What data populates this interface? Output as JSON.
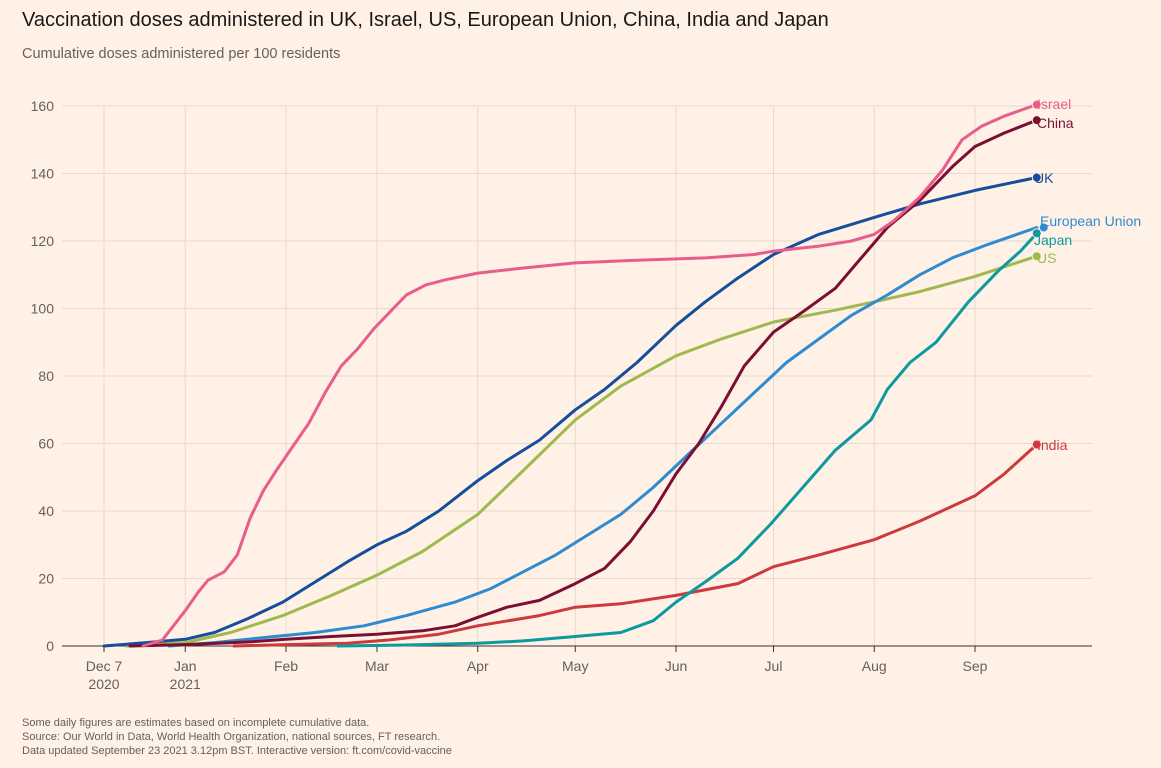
{
  "title": "Vaccination doses administered in UK, Israel, US, European Union, China, India and Japan",
  "subtitle": "Cumulative doses administered per 100 residents",
  "footer": {
    "note": "Some daily figures are estimates based on incomplete cumulative data.",
    "source": "Source: Our World in Data, World Health Organization, national sources, FT research.",
    "updated": "Data updated September 23 2021 3.12pm BST. Interactive version: ft.com/covid-vaccine"
  },
  "colors": {
    "background": "#fff1e5",
    "grid": "#e6d9ce",
    "axis": "#33302e",
    "tick_text": "#66605c"
  },
  "chart_data": {
    "type": "line",
    "xlabel": "",
    "ylabel": "",
    "x_type": "date",
    "xlim": [
      "2020-12-07",
      "2021-10-07"
    ],
    "ylim": [
      0,
      160
    ],
    "yticks": [
      0,
      20,
      40,
      60,
      80,
      100,
      120,
      140,
      160
    ],
    "xticks": [
      {
        "date": "2020-12-07",
        "line1": "Dec 7",
        "line2": "2020"
      },
      {
        "date": "2021-01-01",
        "line1": "Jan",
        "line2": "2021"
      },
      {
        "date": "2021-02-01",
        "line1": "Feb",
        "line2": ""
      },
      {
        "date": "2021-03-01",
        "line1": "Mar",
        "line2": ""
      },
      {
        "date": "2021-04-01",
        "line1": "Apr",
        "line2": ""
      },
      {
        "date": "2021-05-01",
        "line1": "May",
        "line2": ""
      },
      {
        "date": "2021-06-01",
        "line1": "Jun",
        "line2": ""
      },
      {
        "date": "2021-07-01",
        "line1": "Jul",
        "line2": ""
      },
      {
        "date": "2021-08-01",
        "line1": "Aug",
        "line2": ""
      },
      {
        "date": "2021-09-01",
        "line1": "Sep",
        "line2": ""
      }
    ],
    "grid": true,
    "legend": "direct labels at line ends",
    "series": [
      {
        "name": "Israel",
        "color": "#e95d8c",
        "end_value": 160.4,
        "points": [
          [
            "2020-12-19",
            0.0
          ],
          [
            "2020-12-25",
            1.8
          ],
          [
            "2021-01-01",
            10.5
          ],
          [
            "2021-01-05",
            16.0
          ],
          [
            "2021-01-08",
            19.5
          ],
          [
            "2021-01-13",
            22.0
          ],
          [
            "2021-01-17",
            27.0
          ],
          [
            "2021-01-21",
            38.0
          ],
          [
            "2021-01-25",
            46.0
          ],
          [
            "2021-01-29",
            52.0
          ],
          [
            "2021-02-03",
            59.0
          ],
          [
            "2021-02-08",
            66.0
          ],
          [
            "2021-02-13",
            75.0
          ],
          [
            "2021-02-18",
            83.0
          ],
          [
            "2021-02-23",
            88.0
          ],
          [
            "2021-02-28",
            94.0
          ],
          [
            "2021-03-05",
            99.0
          ],
          [
            "2021-03-10",
            104.0
          ],
          [
            "2021-03-16",
            107.0
          ],
          [
            "2021-03-22",
            108.5
          ],
          [
            "2021-04-01",
            110.5
          ],
          [
            "2021-04-15",
            112.0
          ],
          [
            "2021-05-01",
            113.5
          ],
          [
            "2021-05-20",
            114.3
          ],
          [
            "2021-06-10",
            115.0
          ],
          [
            "2021-06-25",
            116.0
          ],
          [
            "2021-07-01",
            117.0
          ],
          [
            "2021-07-15",
            118.5
          ],
          [
            "2021-07-25",
            120.0
          ],
          [
            "2021-08-01",
            122.0
          ],
          [
            "2021-08-07",
            126.0
          ],
          [
            "2021-08-15",
            133.0
          ],
          [
            "2021-08-22",
            141.0
          ],
          [
            "2021-08-28",
            150.0
          ],
          [
            "2021-09-03",
            154.0
          ],
          [
            "2021-09-10",
            157.0
          ],
          [
            "2021-09-20",
            160.4
          ]
        ]
      },
      {
        "name": "China",
        "color": "#7a0f33",
        "end_value": 155.8,
        "points": [
          [
            "2020-12-15",
            0.0
          ],
          [
            "2021-01-01",
            0.4
          ],
          [
            "2021-01-20",
            1.2
          ],
          [
            "2021-02-01",
            2.0
          ],
          [
            "2021-02-15",
            2.8
          ],
          [
            "2021-03-01",
            3.5
          ],
          [
            "2021-03-15",
            4.5
          ],
          [
            "2021-03-25",
            6.0
          ],
          [
            "2021-04-01",
            8.5
          ],
          [
            "2021-04-10",
            11.5
          ],
          [
            "2021-04-20",
            13.5
          ],
          [
            "2021-05-01",
            18.5
          ],
          [
            "2021-05-10",
            23.0
          ],
          [
            "2021-05-18",
            31.0
          ],
          [
            "2021-05-25",
            40.0
          ],
          [
            "2021-06-01",
            51.0
          ],
          [
            "2021-06-08",
            60.0
          ],
          [
            "2021-06-15",
            71.0
          ],
          [
            "2021-06-22",
            83.0
          ],
          [
            "2021-07-01",
            93.0
          ],
          [
            "2021-07-10",
            99.0
          ],
          [
            "2021-07-20",
            106.0
          ],
          [
            "2021-07-28",
            115.0
          ],
          [
            "2021-08-05",
            124.0
          ],
          [
            "2021-08-15",
            132.0
          ],
          [
            "2021-08-25",
            142.0
          ],
          [
            "2021-09-01",
            148.0
          ],
          [
            "2021-09-10",
            152.0
          ],
          [
            "2021-09-20",
            155.8
          ]
        ]
      },
      {
        "name": "UK",
        "color": "#154e9c",
        "end_value": 138.8,
        "points": [
          [
            "2020-12-07",
            0.0
          ],
          [
            "2020-12-20",
            1.0
          ],
          [
            "2021-01-01",
            2.0
          ],
          [
            "2021-01-10",
            4.0
          ],
          [
            "2021-01-20",
            8.0
          ],
          [
            "2021-01-31",
            13.0
          ],
          [
            "2021-02-10",
            19.0
          ],
          [
            "2021-02-20",
            25.0
          ],
          [
            "2021-03-01",
            30.0
          ],
          [
            "2021-03-10",
            34.0
          ],
          [
            "2021-03-20",
            40.0
          ],
          [
            "2021-04-01",
            49.0
          ],
          [
            "2021-04-10",
            55.0
          ],
          [
            "2021-04-20",
            61.0
          ],
          [
            "2021-05-01",
            70.0
          ],
          [
            "2021-05-10",
            76.0
          ],
          [
            "2021-05-20",
            84.0
          ],
          [
            "2021-06-01",
            95.0
          ],
          [
            "2021-06-10",
            102.0
          ],
          [
            "2021-06-20",
            109.0
          ],
          [
            "2021-07-01",
            116.0
          ],
          [
            "2021-07-15",
            122.0
          ],
          [
            "2021-08-01",
            127.0
          ],
          [
            "2021-08-15",
            131.0
          ],
          [
            "2021-09-01",
            135.0
          ],
          [
            "2021-09-20",
            138.8
          ]
        ]
      },
      {
        "name": "European Union",
        "color": "#2e8bd1",
        "end_value": 124.0,
        "points": [
          [
            "2020-12-27",
            0.0
          ],
          [
            "2021-01-10",
            1.0
          ],
          [
            "2021-01-25",
            2.5
          ],
          [
            "2021-02-10",
            4.0
          ],
          [
            "2021-02-25",
            6.0
          ],
          [
            "2021-03-10",
            9.0
          ],
          [
            "2021-03-25",
            13.0
          ],
          [
            "2021-04-05",
            17.0
          ],
          [
            "2021-04-15",
            22.0
          ],
          [
            "2021-04-25",
            27.0
          ],
          [
            "2021-05-05",
            33.0
          ],
          [
            "2021-05-15",
            39.0
          ],
          [
            "2021-05-25",
            47.0
          ],
          [
            "2021-06-05",
            57.0
          ],
          [
            "2021-06-15",
            66.0
          ],
          [
            "2021-06-25",
            75.0
          ],
          [
            "2021-07-05",
            84.0
          ],
          [
            "2021-07-15",
            91.0
          ],
          [
            "2021-07-25",
            98.0
          ],
          [
            "2021-08-05",
            104.0
          ],
          [
            "2021-08-15",
            110.0
          ],
          [
            "2021-08-25",
            115.0
          ],
          [
            "2021-09-05",
            119.0
          ],
          [
            "2021-09-20",
            124.0
          ]
        ]
      },
      {
        "name": "Japan",
        "color": "#0d9a9e",
        "end_value": 122.3,
        "points": [
          [
            "2021-02-17",
            0.0
          ],
          [
            "2021-03-10",
            0.3
          ],
          [
            "2021-04-01",
            0.8
          ],
          [
            "2021-04-15",
            1.5
          ],
          [
            "2021-05-01",
            2.8
          ],
          [
            "2021-05-15",
            4.0
          ],
          [
            "2021-05-25",
            7.5
          ],
          [
            "2021-06-01",
            13.0
          ],
          [
            "2021-06-10",
            19.0
          ],
          [
            "2021-06-20",
            26.0
          ],
          [
            "2021-06-30",
            36.0
          ],
          [
            "2021-07-10",
            47.0
          ],
          [
            "2021-07-20",
            58.0
          ],
          [
            "2021-07-31",
            67.0
          ],
          [
            "2021-08-05",
            76.0
          ],
          [
            "2021-08-12",
            84.0
          ],
          [
            "2021-08-20",
            90.0
          ],
          [
            "2021-08-30",
            102.0
          ],
          [
            "2021-09-08",
            111.0
          ],
          [
            "2021-09-15",
            117.0
          ],
          [
            "2021-09-20",
            122.3
          ]
        ]
      },
      {
        "name": "US",
        "color": "#9eba4f",
        "end_value": 115.5,
        "points": [
          [
            "2020-12-14",
            0.0
          ],
          [
            "2020-12-25",
            0.5
          ],
          [
            "2021-01-01",
            1.0
          ],
          [
            "2021-01-15",
            4.0
          ],
          [
            "2021-01-31",
            9.0
          ],
          [
            "2021-02-15",
            15.0
          ],
          [
            "2021-03-01",
            21.0
          ],
          [
            "2021-03-15",
            28.0
          ],
          [
            "2021-04-01",
            39.0
          ],
          [
            "2021-04-15",
            52.0
          ],
          [
            "2021-05-01",
            67.0
          ],
          [
            "2021-05-15",
            77.0
          ],
          [
            "2021-06-01",
            86.0
          ],
          [
            "2021-06-15",
            91.0
          ],
          [
            "2021-07-01",
            96.0
          ],
          [
            "2021-07-20",
            99.5
          ],
          [
            "2021-08-01",
            102.0
          ],
          [
            "2021-08-15",
            105.0
          ],
          [
            "2021-09-01",
            109.5
          ],
          [
            "2021-09-20",
            115.5
          ]
        ]
      },
      {
        "name": "India",
        "color": "#cc3a3e",
        "end_value": 59.7,
        "points": [
          [
            "2021-01-16",
            0.0
          ],
          [
            "2021-02-01",
            0.4
          ],
          [
            "2021-02-20",
            0.8
          ],
          [
            "2021-03-05",
            1.8
          ],
          [
            "2021-03-20",
            3.5
          ],
          [
            "2021-04-01",
            6.0
          ],
          [
            "2021-04-20",
            9.0
          ],
          [
            "2021-05-01",
            11.5
          ],
          [
            "2021-05-15",
            12.5
          ],
          [
            "2021-06-01",
            15.0
          ],
          [
            "2021-06-20",
            18.5
          ],
          [
            "2021-07-01",
            23.5
          ],
          [
            "2021-07-15",
            27.0
          ],
          [
            "2021-08-01",
            31.5
          ],
          [
            "2021-08-15",
            37.0
          ],
          [
            "2021-09-01",
            44.5
          ],
          [
            "2021-09-10",
            51.0
          ],
          [
            "2021-09-20",
            59.7
          ]
        ]
      }
    ]
  }
}
